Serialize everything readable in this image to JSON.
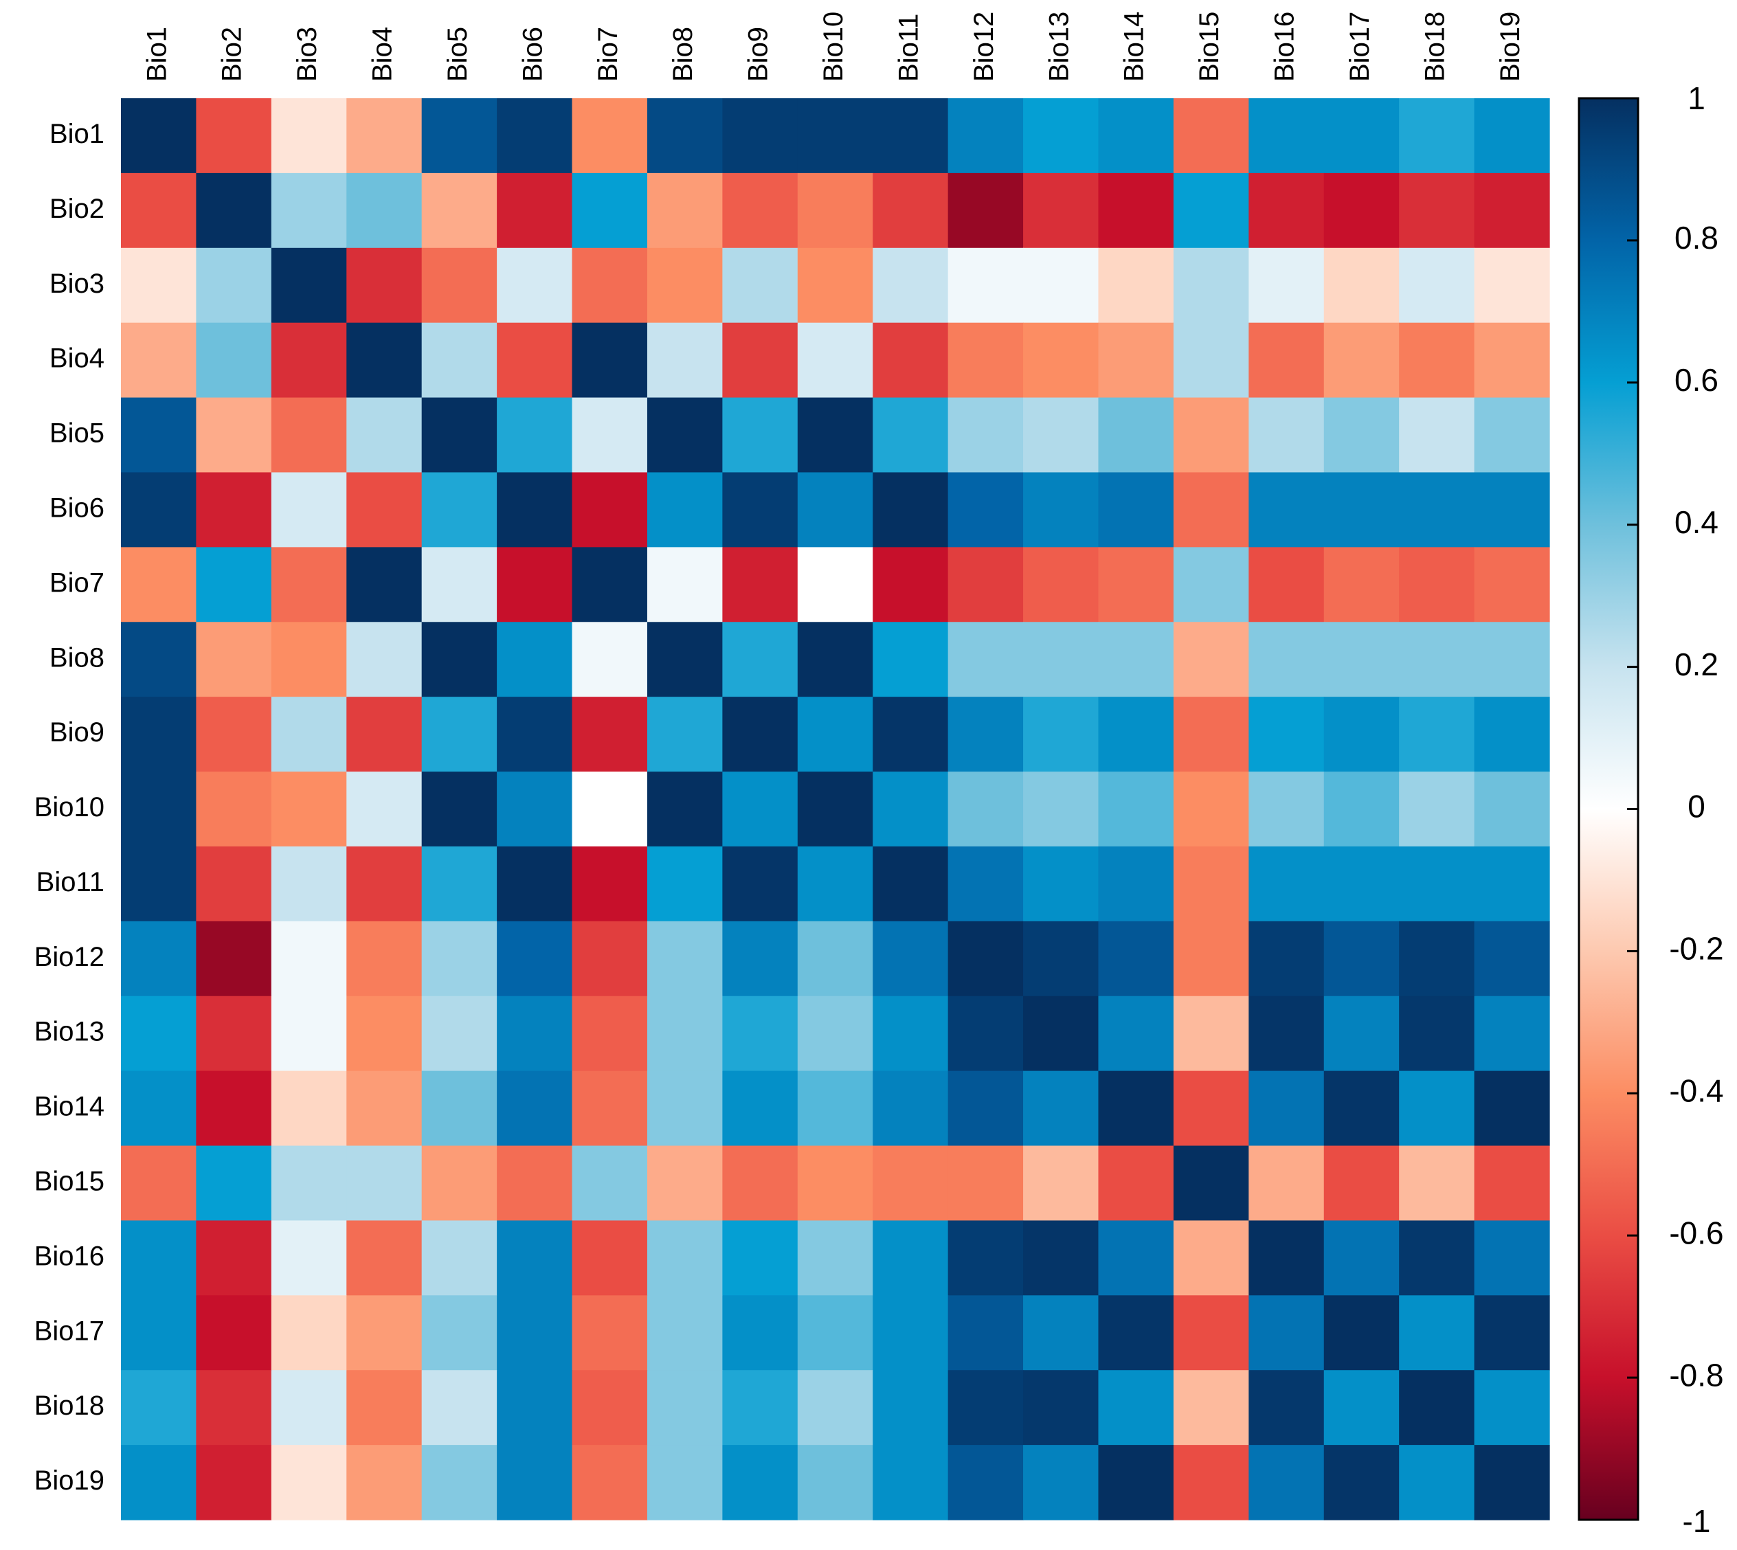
{
  "chart_data": {
    "type": "heatmap",
    "title": "",
    "xlabel": "",
    "ylabel": "",
    "x_labels": [
      "Bio1",
      "Bio2",
      "Bio3",
      "Bio4",
      "Bio5",
      "Bio6",
      "Bio7",
      "Bio8",
      "Bio9",
      "Bio10",
      "Bio11",
      "Bio12",
      "Bio13",
      "Bio14",
      "Bio15",
      "Bio16",
      "Bio17",
      "Bio18",
      "Bio19"
    ],
    "y_labels": [
      "Bio1",
      "Bio2",
      "Bio3",
      "Bio4",
      "Bio5",
      "Bio6",
      "Bio7",
      "Bio8",
      "Bio9",
      "Bio10",
      "Bio11",
      "Bio12",
      "Bio13",
      "Bio14",
      "Bio15",
      "Bio16",
      "Bio17",
      "Bio18",
      "Bio19"
    ],
    "x_label_position": "top",
    "x_label_rotation": "vertical",
    "values": [
      [
        1.0,
        -0.6,
        -0.1,
        -0.3,
        0.85,
        0.95,
        -0.4,
        0.9,
        0.95,
        0.95,
        0.95,
        0.7,
        0.6,
        0.65,
        -0.5,
        0.65,
        0.65,
        0.55,
        0.65
      ],
      [
        -0.6,
        1.0,
        0.3,
        0.4,
        -0.3,
        -0.75,
        0.6,
        -0.35,
        -0.55,
        -0.45,
        -0.65,
        -0.9,
        -0.7,
        -0.8,
        0.6,
        -0.75,
        -0.8,
        -0.7,
        -0.75
      ],
      [
        -0.1,
        0.3,
        1.0,
        -0.7,
        -0.5,
        0.15,
        -0.5,
        -0.4,
        0.25,
        -0.4,
        0.2,
        0.05,
        0.05,
        -0.15,
        0.25,
        0.1,
        -0.15,
        0.15,
        -0.1
      ],
      [
        -0.3,
        0.4,
        -0.7,
        1.0,
        0.25,
        -0.6,
        1.0,
        0.2,
        -0.65,
        0.15,
        -0.65,
        -0.45,
        -0.4,
        -0.35,
        0.25,
        -0.5,
        -0.35,
        -0.45,
        -0.35
      ],
      [
        0.85,
        -0.3,
        -0.5,
        0.25,
        1.0,
        0.55,
        0.15,
        1.0,
        0.55,
        1.0,
        0.55,
        0.3,
        0.25,
        0.4,
        -0.35,
        0.25,
        0.35,
        0.2,
        0.35
      ],
      [
        0.95,
        -0.75,
        0.15,
        -0.6,
        0.55,
        1.0,
        -0.8,
        0.65,
        0.95,
        0.7,
        1.0,
        0.8,
        0.7,
        0.75,
        -0.5,
        0.7,
        0.7,
        0.7,
        0.7
      ],
      [
        -0.4,
        0.6,
        -0.5,
        1.0,
        0.15,
        -0.8,
        1.0,
        0.05,
        -0.75,
        0.0,
        -0.8,
        -0.65,
        -0.55,
        -0.5,
        0.35,
        -0.6,
        -0.5,
        -0.55,
        -0.5
      ],
      [
        0.9,
        -0.35,
        -0.4,
        0.2,
        1.0,
        0.65,
        0.05,
        1.0,
        0.55,
        1.0,
        0.6,
        0.35,
        0.35,
        0.35,
        -0.3,
        0.35,
        0.35,
        0.35,
        0.35
      ],
      [
        0.95,
        -0.55,
        0.25,
        -0.65,
        0.55,
        0.95,
        -0.75,
        0.55,
        1.0,
        0.65,
        0.98,
        0.7,
        0.55,
        0.65,
        -0.5,
        0.6,
        0.65,
        0.55,
        0.65
      ],
      [
        0.95,
        -0.45,
        -0.4,
        0.15,
        1.0,
        0.7,
        0.0,
        1.0,
        0.65,
        1.0,
        0.65,
        0.4,
        0.35,
        0.45,
        -0.4,
        0.35,
        0.45,
        0.3,
        0.4
      ],
      [
        0.95,
        -0.65,
        0.2,
        -0.65,
        0.55,
        1.0,
        -0.8,
        0.6,
        0.98,
        0.65,
        1.0,
        0.75,
        0.65,
        0.7,
        -0.45,
        0.65,
        0.65,
        0.65,
        0.65
      ],
      [
        0.7,
        -0.9,
        0.05,
        -0.45,
        0.3,
        0.8,
        -0.65,
        0.35,
        0.7,
        0.4,
        0.75,
        1.0,
        0.95,
        0.85,
        -0.45,
        0.95,
        0.85,
        0.95,
        0.85
      ],
      [
        0.6,
        -0.7,
        0.05,
        -0.4,
        0.25,
        0.7,
        -0.55,
        0.35,
        0.55,
        0.35,
        0.65,
        0.95,
        1.0,
        0.7,
        -0.25,
        0.98,
        0.7,
        0.97,
        0.7
      ],
      [
        0.65,
        -0.8,
        -0.15,
        -0.35,
        0.4,
        0.75,
        -0.5,
        0.35,
        0.65,
        0.45,
        0.7,
        0.85,
        0.7,
        1.0,
        -0.6,
        0.75,
        0.98,
        0.65,
        1.0
      ],
      [
        -0.5,
        0.6,
        0.25,
        0.25,
        -0.35,
        -0.5,
        0.35,
        -0.3,
        -0.5,
        -0.4,
        -0.45,
        -0.45,
        -0.25,
        -0.6,
        1.0,
        -0.3,
        -0.6,
        -0.25,
        -0.6
      ],
      [
        0.65,
        -0.75,
        0.1,
        -0.5,
        0.25,
        0.7,
        -0.6,
        0.35,
        0.6,
        0.35,
        0.65,
        0.95,
        0.98,
        0.75,
        -0.3,
        1.0,
        0.75,
        0.97,
        0.75
      ],
      [
        0.65,
        -0.8,
        -0.15,
        -0.35,
        0.35,
        0.7,
        -0.5,
        0.35,
        0.65,
        0.45,
        0.65,
        0.85,
        0.7,
        0.98,
        -0.6,
        0.75,
        1.0,
        0.65,
        0.98
      ],
      [
        0.55,
        -0.7,
        0.15,
        -0.45,
        0.2,
        0.7,
        -0.55,
        0.35,
        0.55,
        0.3,
        0.65,
        0.95,
        0.97,
        0.65,
        -0.25,
        0.97,
        0.65,
        1.0,
        0.65
      ],
      [
        0.65,
        -0.75,
        -0.1,
        -0.35,
        0.35,
        0.7,
        -0.5,
        0.35,
        0.65,
        0.4,
        0.65,
        0.85,
        0.7,
        1.0,
        -0.6,
        0.75,
        0.98,
        0.65,
        1.0
      ]
    ],
    "zlim": [
      -1,
      1
    ],
    "colorbar": {
      "ticks": [
        1,
        0.8,
        0.6,
        0.4,
        0.2,
        0,
        -0.2,
        -0.4,
        -0.6,
        -0.8,
        -1
      ],
      "tick_labels": [
        "1",
        "0.8",
        "0.6",
        "0.4",
        "0.2",
        "0",
        "-0.2",
        "-0.4",
        "-0.6",
        "-0.8",
        "-1"
      ],
      "placement": "right"
    },
    "color_scale": {
      "stops": [
        -1,
        -0.8,
        -0.6,
        -0.4,
        -0.2,
        0,
        0.2,
        0.4,
        0.6,
        0.8,
        1
      ],
      "colors": [
        "#67001f",
        "#c7102b",
        "#ea4d44",
        "#fc8d63",
        "#fdc9b0",
        "#ffffff",
        "#c7e3ef",
        "#6ec0dc",
        "#059fd3",
        "#0264a8",
        "#053061"
      ]
    },
    "grid": false
  }
}
